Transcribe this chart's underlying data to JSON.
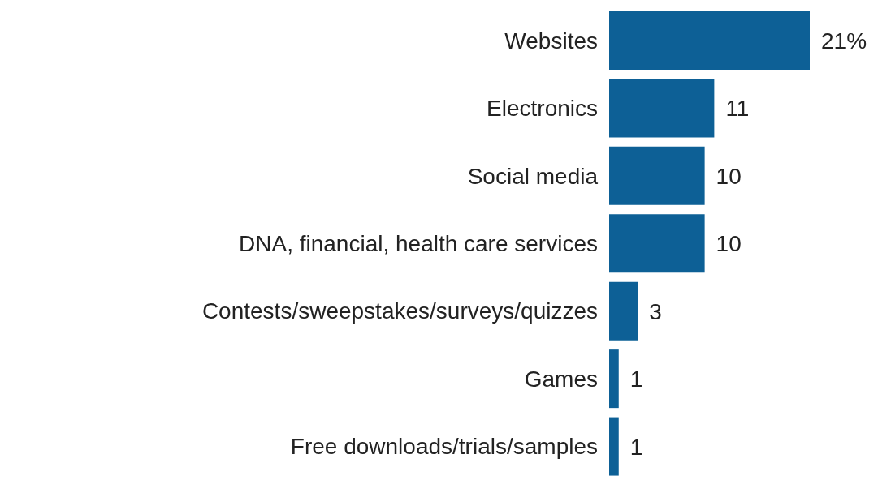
{
  "chart_data": {
    "type": "bar",
    "orientation": "horizontal",
    "categories": [
      "Websites",
      "Electronics",
      "Social media",
      "DNA, financial, health care services",
      "Contests/sweepstakes/surveys/quizzes",
      "Games",
      "Free downloads/trials/samples"
    ],
    "values": [
      21,
      11,
      10,
      10,
      3,
      1,
      1
    ],
    "value_labels": [
      "21%",
      "11",
      "10",
      "10",
      "3",
      "1",
      "1"
    ],
    "color": "#0d6096"
  }
}
